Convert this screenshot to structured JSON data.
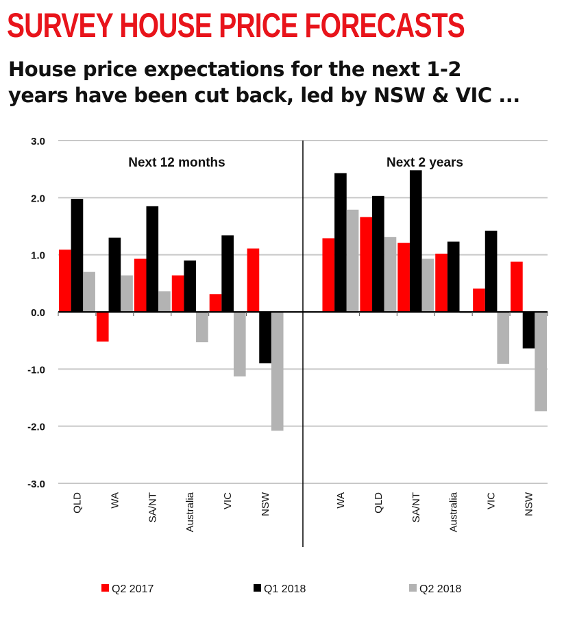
{
  "title": "SURVEY HOUSE PRICE FORECASTS",
  "subtitle_line1": "House price expectations for the next 1-2",
  "subtitle_line2": "years have been cut back, led by NSW & VIC ...",
  "chart_data": {
    "type": "bar",
    "ylim": [
      -3,
      3
    ],
    "yticks": [
      "3.0",
      "2.0",
      "1.0",
      "0.0",
      "-1.0",
      "-2.0",
      "-3.0"
    ],
    "grid": true,
    "legend_position": "bottom",
    "colors": {
      "Q2 2017": "#ff0000",
      "Q1 2018": "#000000",
      "Q2 2018": "#b3b3b3"
    },
    "panels": [
      {
        "title": "Next 12 months",
        "categories": [
          "QLD",
          "WA",
          "SA/NT",
          "Australia",
          "VIC",
          "NSW"
        ],
        "series": [
          {
            "name": "Q2 2017",
            "values": [
              1.09,
              -0.52,
              0.93,
              0.64,
              0.31,
              1.11
            ]
          },
          {
            "name": "Q1 2018",
            "values": [
              1.98,
              1.3,
              1.85,
              0.9,
              1.34,
              -0.9
            ]
          },
          {
            "name": "Q2 2018",
            "values": [
              0.7,
              0.64,
              0.36,
              -0.53,
              -1.13,
              -2.08
            ]
          }
        ]
      },
      {
        "title": "Next 2 years",
        "categories": [
          "WA",
          "QLD",
          "SA/NT",
          "Australia",
          "VIC",
          "NSW"
        ],
        "series": [
          {
            "name": "Q2 2017",
            "values": [
              1.29,
              1.66,
              1.21,
              1.02,
              0.41,
              0.88
            ]
          },
          {
            "name": "Q1 2018",
            "values": [
              2.43,
              2.03,
              2.48,
              1.23,
              1.42,
              -0.64
            ]
          },
          {
            "name": "Q2 2018",
            "values": [
              1.79,
              1.31,
              0.93,
              -0.02,
              -0.91,
              -1.74
            ]
          }
        ]
      }
    ],
    "legend": [
      "Q2 2017",
      "Q1 2018",
      "Q2 2018"
    ]
  }
}
